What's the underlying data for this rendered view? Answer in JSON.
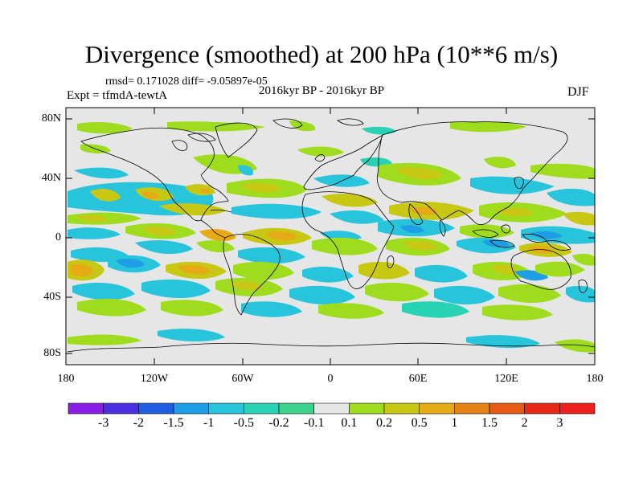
{
  "title": "Divergence (smoothed) at 200 hPa (10**6 m/s)",
  "stats": "rmsd= 0.171028 diff= -9.05897e-05",
  "expt": "Expt = tfmdA-tewtA",
  "period": "2016kyr BP - 2016kyr BP",
  "season": "DJF",
  "lat_labels": [
    "80N",
    "40N",
    "0",
    "40S",
    "80S"
  ],
  "lon_labels": [
    "180",
    "120W",
    "60W",
    "0",
    "60E",
    "120E",
    "180"
  ],
  "colorbar": {
    "labels": [
      "-3",
      "-2",
      "-1.5",
      "-1",
      "-0.5",
      "-0.2",
      "-0.1",
      "0.1",
      "0.2",
      "0.5",
      "1",
      "1.5",
      "2",
      "3"
    ],
    "colors": [
      "#8a1ee6",
      "#4a2ee0",
      "#1e5ce0",
      "#1e9ee6",
      "#28c4dc",
      "#28d2b4",
      "#3cd28c",
      "#e6e6e6",
      "#a0dc1e",
      "#c8c814",
      "#e6aa14",
      "#e68214",
      "#e65a14",
      "#e62814",
      "#f01e1e"
    ]
  },
  "map": {
    "background_color": "#e6e6e6",
    "coast_color": "#000000"
  }
}
